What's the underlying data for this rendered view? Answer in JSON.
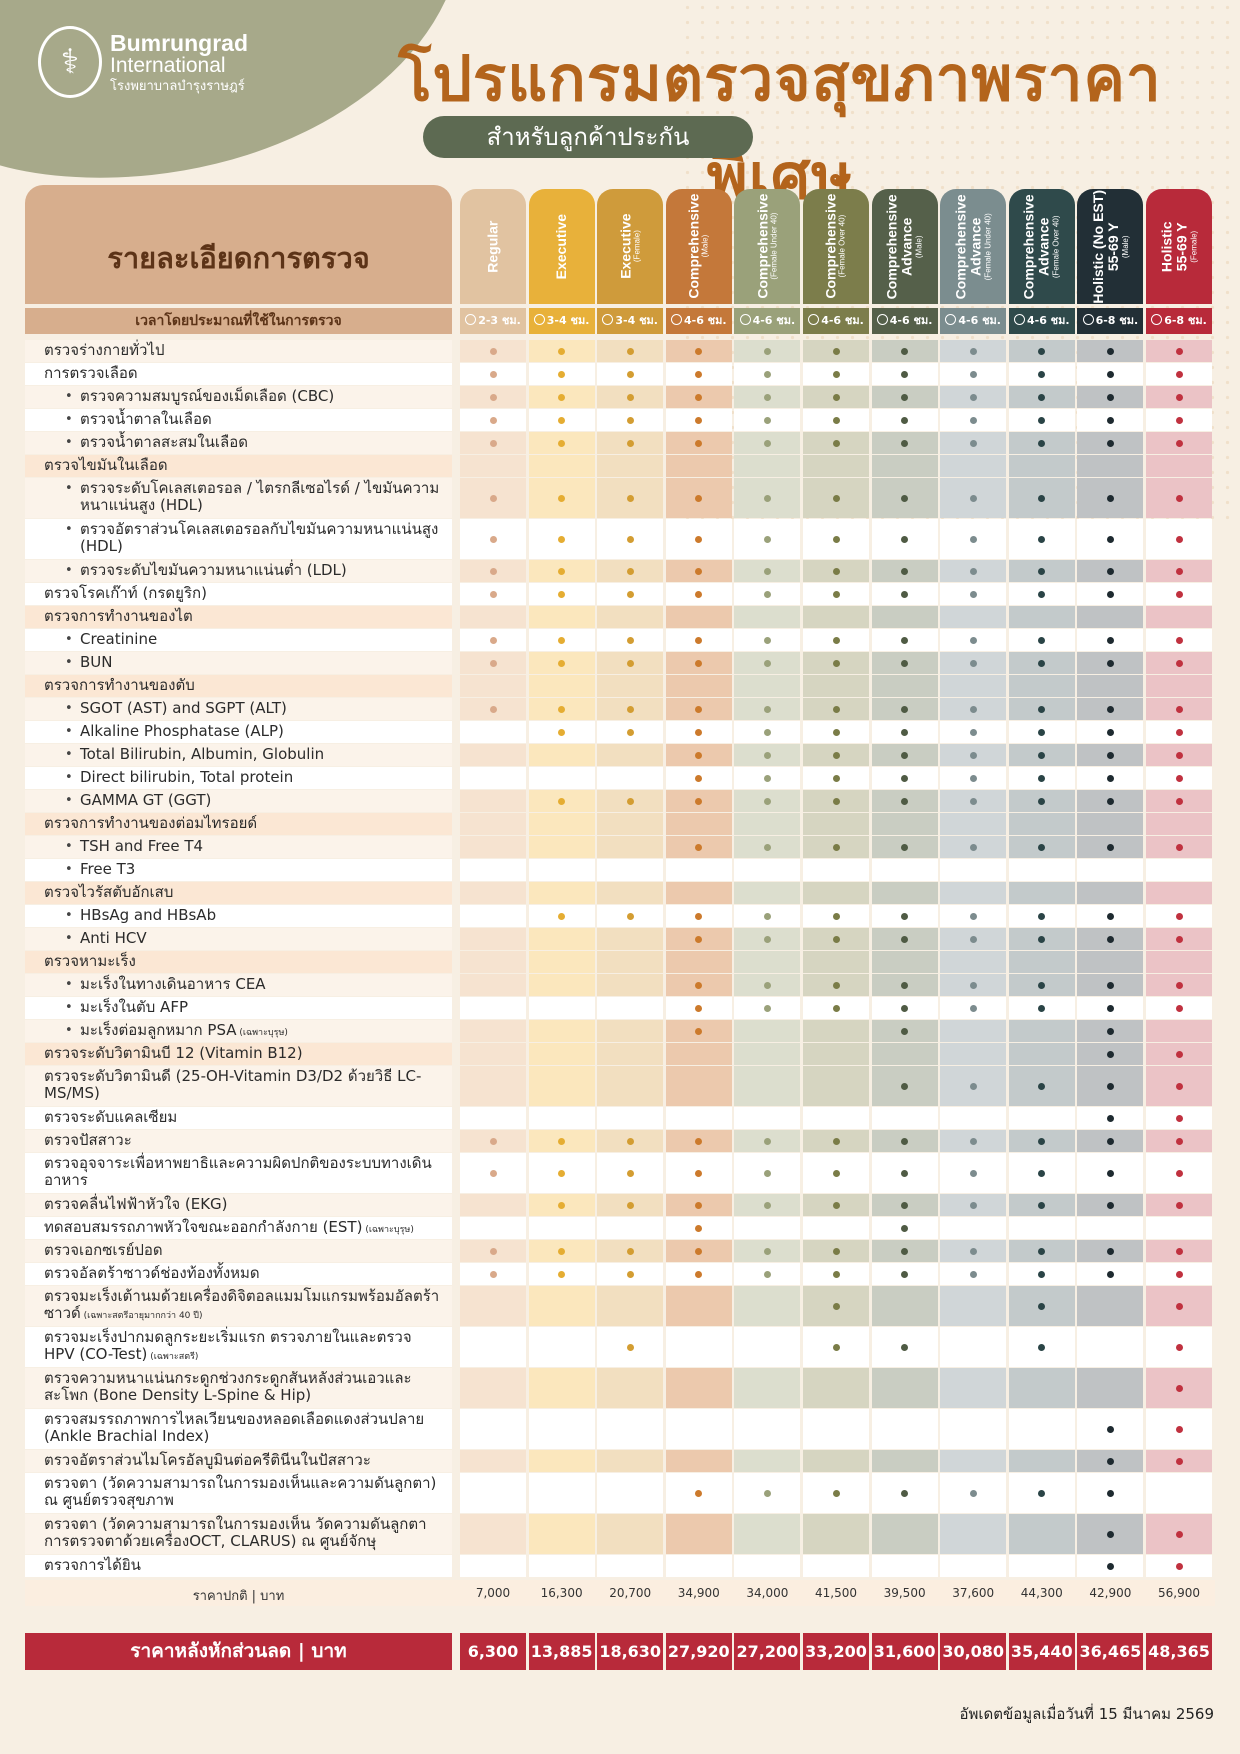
{
  "brand": {
    "name_line1": "Bumrungrad",
    "name_line2": "International",
    "name_thai": "โรงพยาบาลบำรุงราษฎร์",
    "logo_icon": "caduceus-icon"
  },
  "header": {
    "title": "โปรแกรมตรวจสุขภาพราคาพิเศษ",
    "subtitle": "สำหรับลูกค้าประกัน"
  },
  "table": {
    "details_header": "รายละเอียดการตรวจ",
    "time_label": "เวลาโดยประมาณที่ใช้ในการตรวจ",
    "price_label": "ราคาปกติ | บาท",
    "discount_label": "ราคาหลังหักส่วนลด | บาท",
    "packages": [
      {
        "name": "Regular",
        "sub": "",
        "time": "2-3 ชม.",
        "price": "7,000",
        "discount": "6,300",
        "color": "#e1c3a1",
        "dot": "#d9a98a",
        "light": "#fcefe4",
        "dark": "#f6e3d0"
      },
      {
        "name": "Executive",
        "sub": "",
        "time": "3-4 ชม.",
        "price": "16,300",
        "discount": "13,885",
        "color": "#e8b13a",
        "dot": "#e5ad32",
        "light": "#fdf3dc",
        "dark": "#fbe7bd"
      },
      {
        "name": "Executive",
        "sub": "(Female)",
        "time": "3-4 ชม.",
        "price": "20,700",
        "discount": "18,630",
        "color": "#cf9b3b",
        "dot": "#d39d32",
        "light": "#f9eddb",
        "dark": "#f2dfc0"
      },
      {
        "name": "Comprehensive",
        "sub": "(Male)",
        "time": "4-6 ชม.",
        "price": "34,900",
        "discount": "27,920",
        "color": "#c4783a",
        "dot": "#cc7a2c",
        "light": "#f6e2d2",
        "dark": "#ecc9ad"
      },
      {
        "name": "Comprehensive",
        "sub": "(Female Under 40)",
        "time": "4-6 ชม.",
        "price": "34,000",
        "discount": "27,200",
        "color": "#9aa17a",
        "dot": "#9aa17a",
        "light": "#ebece1",
        "dark": "#dcdece"
      },
      {
        "name": "Comprehensive",
        "sub": "(Female Over 40)",
        "time": "4-6 ชม.",
        "price": "41,500",
        "discount": "33,200",
        "color": "#7c7d4b",
        "dot": "#7a7c47",
        "light": "#e7e6d9",
        "dark": "#d6d5c1"
      },
      {
        "name": "Comprehensive",
        "sub2": "Advance",
        "sub": "(Male)",
        "time": "4-6 ชม.",
        "price": "39,500",
        "discount": "31,600",
        "color": "#55604a",
        "dot": "#4f5b44",
        "light": "#e2e3dc",
        "dark": "#c9cdc2"
      },
      {
        "name": "Comprehensive",
        "sub2": "Advance",
        "sub": "(Female Under 40)",
        "time": "4-6 ชม.",
        "price": "37,600",
        "discount": "30,080",
        "color": "#7b8d8f",
        "dot": "#7c8c8e",
        "light": "#e4e8e9",
        "dark": "#d0d6d8"
      },
      {
        "name": "Comprehensive",
        "sub2": "Advance",
        "sub": "(Female Over 40)",
        "time": "4-6 ชม.",
        "price": "44,300",
        "discount": "35,440",
        "color": "#2f4a4b",
        "dot": "#2a4446",
        "light": "#dde1e1",
        "dark": "#c3cacb"
      },
      {
        "name": "Holistic (No EST)",
        "sub2": "55-69 Y",
        "sub": "(Male)",
        "time": "6-8 ชม.",
        "price": "42,900",
        "discount": "36,465",
        "color": "#222f36",
        "dot": "#1e2a30",
        "light": "#d7d9da",
        "dark": "#bfc2c4"
      },
      {
        "name": "Holistic",
        "sub2": "55-69 Y",
        "sub": "(Female)",
        "time": "6-8 ชม.",
        "price": "56,900",
        "discount": "48,365",
        "color": "#b82a3a",
        "dot": "#c0313f",
        "light": "#f6dfe0",
        "dark": "#ebc3c6"
      }
    ],
    "rows": [
      {
        "label": "ตรวจร่างกายทั่วไป",
        "type": "main",
        "dots": "11111111111"
      },
      {
        "label": "การตรวจเลือด",
        "type": "main",
        "dots": "11111111111"
      },
      {
        "label": "ตรวจความสมบูรณ์ของเม็ดเลือด (CBC)",
        "type": "sub",
        "dots": "11111111111"
      },
      {
        "label": "ตรวจน้ำตาลในเลือด",
        "type": "sub",
        "dots": "11111111111"
      },
      {
        "label": "ตรวจน้ำตาลสะสมในเลือด",
        "type": "sub",
        "dots": "11111111111"
      },
      {
        "label": "ตรวจไขมันในเลือด",
        "type": "cat",
        "dots": "00000000000"
      },
      {
        "label": "ตรวจระดับโคเลสเตอรอล / ไตรกลีเซอไรด์ / ไขมันความหนาแน่นสูง (HDL)",
        "type": "sub",
        "dots": "11111111111",
        "tall": true
      },
      {
        "label": "ตรวจอัตราส่วนโคเลสเตอรอลกับไขมันความหนาแน่นสูง (HDL)",
        "type": "sub",
        "dots": "11111111111",
        "tall": true
      },
      {
        "label": "ตรวจระดับไขมันความหนาแน่นต่ำ (LDL)",
        "type": "sub",
        "dots": "11111111111"
      },
      {
        "label": "ตรวจโรคเก๊าท์ (กรดยูริก)",
        "type": "main",
        "dots": "11111111111"
      },
      {
        "label": "ตรวจการทำงานของไต",
        "type": "cat",
        "dots": "00000000000"
      },
      {
        "label": "Creatinine",
        "type": "sub",
        "dots": "11111111111"
      },
      {
        "label": "BUN",
        "type": "sub",
        "dots": "11111111111"
      },
      {
        "label": "ตรวจการทำงานของตับ",
        "type": "cat",
        "dots": "00000000000"
      },
      {
        "label": "SGOT (AST) and SGPT (ALT)",
        "type": "sub",
        "dots": "11111111111"
      },
      {
        "label": "Alkaline Phosphatase (ALP)",
        "type": "sub",
        "dots": "01111111111"
      },
      {
        "label": "Total Bilirubin, Albumin, Globulin",
        "type": "sub",
        "dots": "00011111111"
      },
      {
        "label": "Direct bilirubin, Total protein",
        "type": "sub",
        "dots": "00011111111"
      },
      {
        "label": "GAMMA GT (GGT)",
        "type": "sub",
        "dots": "01111111111"
      },
      {
        "label": "ตรวจการทำงานของต่อมไทรอยด์",
        "type": "cat",
        "dots": "00000000000"
      },
      {
        "label": "TSH and Free T4",
        "type": "sub",
        "dots": "00011111111"
      },
      {
        "label": "Free T3",
        "type": "sub",
        "dots": "00000000000"
      },
      {
        "label": "ตรวจไวรัสตับอักเสบ",
        "type": "cat",
        "dots": "00000000000"
      },
      {
        "label": "HBsAg and HBsAb",
        "type": "sub",
        "dots": "01111111111"
      },
      {
        "label": "Anti HCV",
        "type": "sub",
        "dots": "00011111111"
      },
      {
        "label": "ตรวจหามะเร็ง",
        "type": "cat",
        "dots": "00000000000"
      },
      {
        "label": "มะเร็งในทางเดินอาหาร CEA",
        "type": "sub",
        "dots": "00011111111"
      },
      {
        "label": "มะเร็งในตับ AFP",
        "type": "sub",
        "dots": "00011111111"
      },
      {
        "label": "มะเร็งต่อมลูกหมาก PSA",
        "note": "(เฉพาะบุรุษ)",
        "type": "sub",
        "dots": "00010010010"
      },
      {
        "label": "ตรวจระดับวิตามินบี 12 (Vitamin B12)",
        "type": "cat",
        "dots": "00000000011"
      },
      {
        "label": "ตรวจระดับวิตามินดี (25-OH-Vitamin D3/D2 ด้วยวิธี LC-MS/MS)",
        "type": "main",
        "dots": "00000011111",
        "tall": true
      },
      {
        "label": "ตรวจระดับแคลเซียม",
        "type": "main",
        "dots": "00000000011"
      },
      {
        "label": "ตรวจปัสสาวะ",
        "type": "main",
        "dots": "11111111111"
      },
      {
        "label": "ตรวจอุจจาระเพื่อหาพยาธิและความผิดปกติของระบบทางเดินอาหาร",
        "type": "main",
        "dots": "11111111111",
        "tall": true
      },
      {
        "label": "ตรวจคลื่นไฟฟ้าหัวใจ (EKG)",
        "type": "main",
        "dots": "01111111111"
      },
      {
        "label": "ทดสอบสมรรถภาพหัวใจขณะออกกำลังกาย (EST)",
        "note": "(เฉพาะบุรุษ)",
        "type": "main",
        "dots": "00010010000"
      },
      {
        "label": "ตรวจเอกซเรย์ปอด",
        "type": "main",
        "dots": "11111111111"
      },
      {
        "label": "ตรวจอัลตร้าซาวด์ช่องท้องทั้งหมด",
        "type": "main",
        "dots": "11111111111"
      },
      {
        "label": "ตรวจมะเร็งเต้านมด้วยเครื่องดิจิตอลแมมโมแกรมพร้อมอัลตร้าซาวด์",
        "note": "(เฉพาะสตรีอายุมากกว่า 40 ปี)",
        "type": "main",
        "dots": "00000100101",
        "tall": true
      },
      {
        "label": "ตรวจมะเร็งปากมดลูกระยะเริ่มแรก ตรวจภายในและตรวจ HPV (CO-Test)",
        "note": "(เฉพาะสตรี)",
        "type": "main",
        "dots": "00100110101",
        "tall": true
      },
      {
        "label": "ตรวจความหนาแน่นกระดูกช่วงกระดูกสันหลังส่วนเอวและสะโพก (Bone Density L-Spine & Hip)",
        "type": "main",
        "dots": "00000000001",
        "tall": true
      },
      {
        "label": "ตรวจสมรรถภาพการไหลเวียนของหลอดเลือดแดงส่วนปลาย (Ankle Brachial Index)",
        "type": "main",
        "dots": "00000000011",
        "tall": true
      },
      {
        "label": "ตรวจอัตราส่วนไมโครอัลบูมินต่อครีตินีนในปัสสาวะ",
        "type": "main",
        "dots": "00000000011"
      },
      {
        "label": "ตรวจตา (วัดความสามารถในการมองเห็นและความดันลูกตา) ณ ศูนย์ตรวจสุขภาพ",
        "type": "main",
        "dots": "00011111110",
        "tall": true
      },
      {
        "label": "ตรวจตา (วัดความสามารถในการมองเห็น วัดความดันลูกตา การตรวจตาด้วยเครื่องOCT, CLARUS) ณ ศูนย์จักษุ",
        "type": "main",
        "dots": "00000000011",
        "tall": true
      },
      {
        "label": "ตรวจการได้ยิน",
        "type": "main",
        "dots": "00000000011"
      }
    ]
  },
  "footer": {
    "updated": "อัพเดตข้อมูลเมื่อวันที่ 15 มีนาคม 2569"
  }
}
